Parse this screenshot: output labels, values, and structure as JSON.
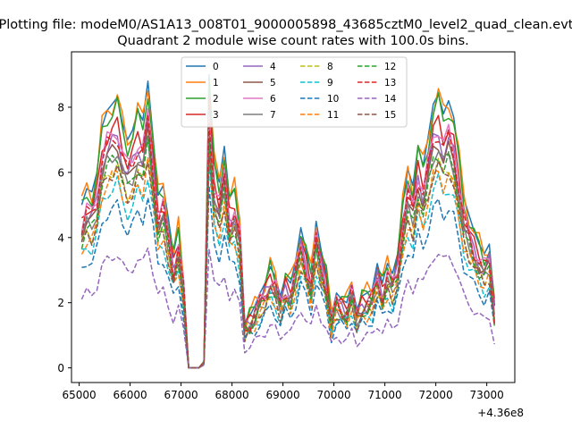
{
  "chart_data": {
    "type": "line",
    "suptitle": "Plotting file: modeM0/AS1A13_008T01_9000005898_43685cztM0_level2_quad_clean.evt",
    "title": "Quadrant 2 module wise count rates with 100.0s bins.",
    "xlabel": "",
    "ylabel": "",
    "x_offset_label": "+4.36e8",
    "xlim": [
      64850,
      73550
    ],
    "ylim": [
      -0.45,
      9.7
    ],
    "xticks": [
      65000,
      66000,
      67000,
      68000,
      69000,
      70000,
      71000,
      72000,
      73000
    ],
    "yticks": [
      0,
      2,
      4,
      6,
      8
    ],
    "grid": false,
    "legend": {
      "placement": "top-center",
      "ncol": 4
    },
    "x": [
      65050,
      65150,
      65250,
      65350,
      65450,
      65550,
      65650,
      65750,
      65850,
      65950,
      66050,
      66150,
      66250,
      66350,
      66450,
      66550,
      66650,
      66750,
      66850,
      66950,
      67050,
      67150,
      67250,
      67350,
      67450,
      67550,
      67650,
      67750,
      67850,
      67950,
      68050,
      68150,
      68250,
      68350,
      68450,
      68550,
      68650,
      68750,
      68850,
      68950,
      69050,
      69150,
      69250,
      69350,
      69450,
      69550,
      69650,
      69750,
      69850,
      69950,
      70050,
      70150,
      70250,
      70350,
      70450,
      70550,
      70650,
      70750,
      70850,
      70950,
      71050,
      71150,
      71250,
      71350,
      71450,
      71550,
      71650,
      71750,
      71850,
      71950,
      72050,
      72150,
      72250,
      72350,
      72450,
      72550,
      72650,
      72750,
      72850,
      72950,
      73050,
      73150
    ],
    "base_profile": [
      5.0,
      5.5,
      5.4,
      6.0,
      7.4,
      7.9,
      8.1,
      8.3,
      7.5,
      7.0,
      7.3,
      7.9,
      7.6,
      8.8,
      7.1,
      5.3,
      5.6,
      4.6,
      3.5,
      4.3,
      2.7,
      0.0,
      0.0,
      0.0,
      0.2,
      9.0,
      6.3,
      5.7,
      6.8,
      5.2,
      5.5,
      4.6,
      1.4,
      1.6,
      1.9,
      2.3,
      2.6,
      3.1,
      2.8,
      2.2,
      2.8,
      2.6,
      3.3,
      4.3,
      3.6,
      2.9,
      4.5,
      3.6,
      2.9,
      1.6,
      2.3,
      2.1,
      2.0,
      2.6,
      1.8,
      2.2,
      2.3,
      2.4,
      3.2,
      2.6,
      3.2,
      2.9,
      3.5,
      5.0,
      6.1,
      5.6,
      6.8,
      6.2,
      7.1,
      8.1,
      8.4,
      7.8,
      8.2,
      7.7,
      6.5,
      5.2,
      4.7,
      4.2,
      3.8,
      3.5,
      3.8,
      1.9
    ],
    "series": [
      {
        "name": "0",
        "color": "#1f77b4",
        "dashed": false,
        "scale": 1.0,
        "ripple": 0.0
      },
      {
        "name": "1",
        "color": "#ff7f0e",
        "dashed": false,
        "scale": 1.0,
        "ripple": 0.35
      },
      {
        "name": "2",
        "color": "#2ca02c",
        "dashed": false,
        "scale": 0.97,
        "ripple": 0.3
      },
      {
        "name": "3",
        "color": "#d62728",
        "dashed": false,
        "scale": 0.9,
        "ripple": 0.25
      },
      {
        "name": "4",
        "color": "#9467bd",
        "dashed": false,
        "scale": 0.85,
        "ripple": 0.3
      },
      {
        "name": "5",
        "color": "#8c564b",
        "dashed": false,
        "scale": 0.82,
        "ripple": 0.25
      },
      {
        "name": "6",
        "color": "#e377c2",
        "dashed": false,
        "scale": 0.88,
        "ripple": 0.3
      },
      {
        "name": "7",
        "color": "#7f7f7f",
        "dashed": false,
        "scale": 0.8,
        "ripple": 0.25
      },
      {
        "name": "8",
        "color": "#bcbd22",
        "dashed": true,
        "scale": 0.75,
        "ripple": 0.25
      },
      {
        "name": "9",
        "color": "#17becf",
        "dashed": true,
        "scale": 0.68,
        "ripple": 0.25
      },
      {
        "name": "10",
        "color": "#1f77b4",
        "dashed": true,
        "scale": 0.6,
        "ripple": 0.2
      },
      {
        "name": "11",
        "color": "#ff7f0e",
        "dashed": true,
        "scale": 0.72,
        "ripple": 0.25
      },
      {
        "name": "12",
        "color": "#2ca02c",
        "dashed": true,
        "scale": 0.78,
        "ripple": 0.25
      },
      {
        "name": "13",
        "color": "#d62728",
        "dashed": true,
        "scale": 0.86,
        "ripple": 0.3
      },
      {
        "name": "14",
        "color": "#9467bd",
        "dashed": true,
        "scale": 0.42,
        "ripple": 0.15
      },
      {
        "name": "15",
        "color": "#8c564b",
        "dashed": true,
        "scale": 0.74,
        "ripple": 0.25
      }
    ]
  }
}
